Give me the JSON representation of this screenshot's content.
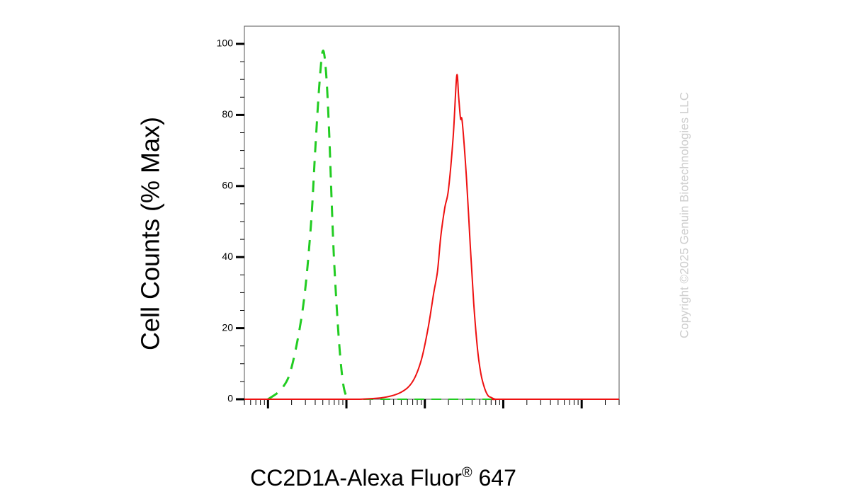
{
  "chart_data": {
    "type": "line",
    "xlabel": "CC2D1A-Alexa Fluor",
    "xlabel_superscript": "®",
    "xlabel_suffix": " 647",
    "ylabel": "Cell Counts (% Max)",
    "x_scale": "log",
    "x_tick_labels_shown": false,
    "xlim": [
      0.5,
      30000
    ],
    "ylim": [
      0,
      105
    ],
    "y_ticks": [
      0,
      20,
      40,
      60,
      80,
      100
    ],
    "y_tick_labels": [
      "0",
      "20",
      "40",
      "60",
      "80",
      "100"
    ],
    "grid": false,
    "legend": "none",
    "series": [
      {
        "color": "#22cc22",
        "line_style": "dashed",
        "x": [
          1,
          1.5,
          2,
          2.8,
          3.5,
          4,
          4.5,
          5,
          5.5,
          6,
          6.5,
          7,
          8,
          9,
          10,
          11
        ],
        "y": [
          0,
          3,
          9,
          26,
          48,
          70,
          88,
          98,
          92,
          76,
          55,
          38,
          17,
          5,
          0.8,
          0
        ]
      },
      {
        "color": "#ee1111",
        "line_style": "solid",
        "x": [
          15,
          30,
          50,
          70,
          90,
          110,
          130,
          145,
          160,
          180,
          200,
          230,
          255,
          270,
          285,
          300,
          340,
          380,
          420,
          470,
          520,
          580,
          640,
          700,
          800,
          1000,
          30000
        ],
        "y": [
          0,
          0.5,
          2,
          5,
          11,
          20,
          30,
          36,
          46,
          54,
          59,
          74,
          91,
          85,
          79,
          78,
          62,
          43,
          27,
          14,
          7,
          3,
          1,
          0.5,
          0,
          0,
          0
        ]
      }
    ]
  },
  "watermark": "Copyright ©2025 Genuin Biotechnologies LLC"
}
